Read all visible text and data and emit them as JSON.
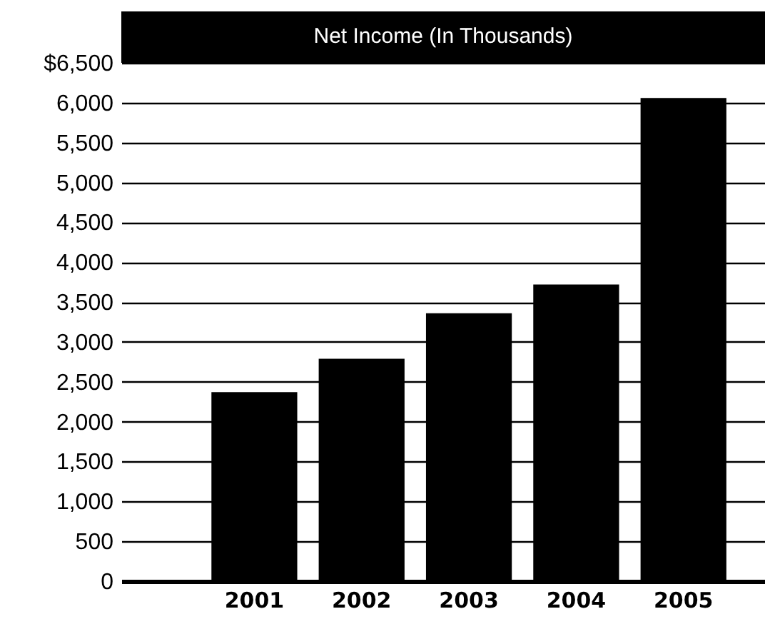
{
  "chart_data": {
    "type": "bar",
    "title": "Net Income (In Thousands)",
    "categories": [
      "2001",
      "2002",
      "2003",
      "2004",
      "2005"
    ],
    "values": [
      2370,
      2790,
      3360,
      3720,
      6060
    ],
    "color": "#000000",
    "ylim": [
      0,
      6500
    ],
    "yticks": [
      {
        "value": 0,
        "label": "0"
      },
      {
        "value": 500,
        "label": "500"
      },
      {
        "value": 1000,
        "label": "1,000"
      },
      {
        "value": 1500,
        "label": "1,500"
      },
      {
        "value": 2000,
        "label": "2,000"
      },
      {
        "value": 2500,
        "label": "2,500"
      },
      {
        "value": 3000,
        "label": "3,000"
      },
      {
        "value": 3500,
        "label": "3,500"
      },
      {
        "value": 4000,
        "label": "4,000"
      },
      {
        "value": 4500,
        "label": "4,500"
      },
      {
        "value": 5000,
        "label": "5,000"
      },
      {
        "value": 5500,
        "label": "5,500"
      },
      {
        "value": 6000,
        "label": "6,000"
      },
      {
        "value": 6500,
        "label": "$6,500"
      }
    ],
    "grid": "y"
  }
}
